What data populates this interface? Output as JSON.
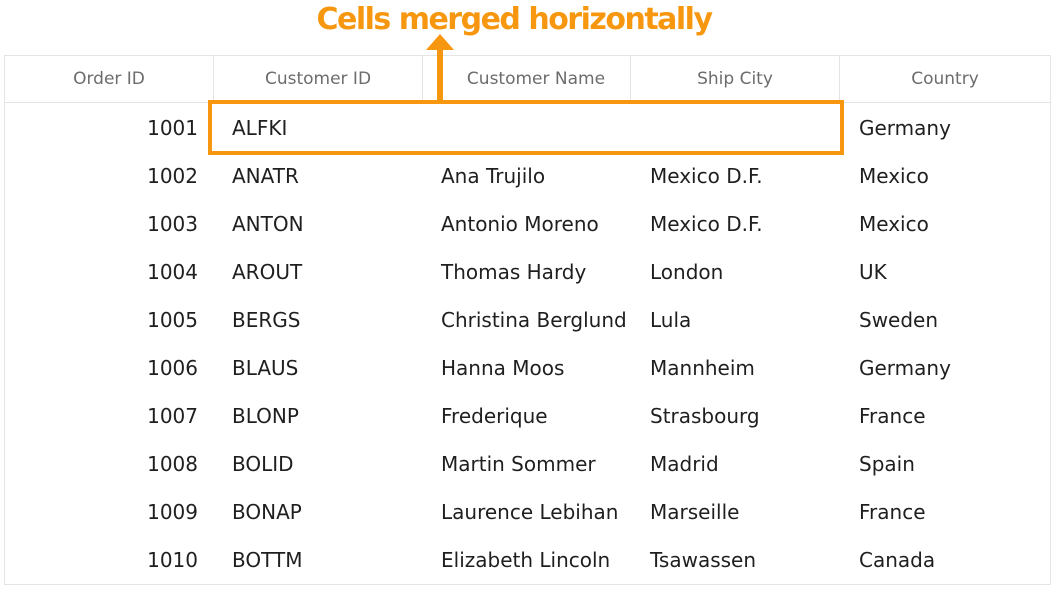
{
  "annotation": {
    "text": "Cells merged horizontally",
    "accent_color": "#f7970f"
  },
  "grid": {
    "columns": [
      "Order ID",
      "Customer ID",
      "Customer Name",
      "Ship City",
      "Country"
    ],
    "rows": [
      {
        "order_id": "1001",
        "customer_id": "ALFKI",
        "customer_name": "",
        "ship_city": "",
        "country": "Germany",
        "merged": true
      },
      {
        "order_id": "1002",
        "customer_id": "ANATR",
        "customer_name": "Ana Trujilo",
        "ship_city": "Mexico D.F.",
        "country": "Mexico"
      },
      {
        "order_id": "1003",
        "customer_id": "ANTON",
        "customer_name": "Antonio Moreno",
        "ship_city": "Mexico D.F.",
        "country": "Mexico"
      },
      {
        "order_id": "1004",
        "customer_id": "AROUT",
        "customer_name": "Thomas Hardy",
        "ship_city": "London",
        "country": "UK"
      },
      {
        "order_id": "1005",
        "customer_id": "BERGS",
        "customer_name": "Christina Berglund",
        "ship_city": "Lula",
        "country": "Sweden"
      },
      {
        "order_id": "1006",
        "customer_id": "BLAUS",
        "customer_name": "Hanna Moos",
        "ship_city": "Mannheim",
        "country": "Germany"
      },
      {
        "order_id": "1007",
        "customer_id": "BLONP",
        "customer_name": "Frederique",
        "ship_city": "Strasbourg",
        "country": "France"
      },
      {
        "order_id": "1008",
        "customer_id": "BOLID",
        "customer_name": "Martin Sommer",
        "ship_city": "Madrid",
        "country": "Spain"
      },
      {
        "order_id": "1009",
        "customer_id": "BONAP",
        "customer_name": "Laurence Lebihan",
        "ship_city": "Marseille",
        "country": "France"
      },
      {
        "order_id": "1010",
        "customer_id": "BOTTM",
        "customer_name": "Elizabeth Lincoln",
        "ship_city": "Tsawassen",
        "country": "Canada"
      }
    ]
  }
}
